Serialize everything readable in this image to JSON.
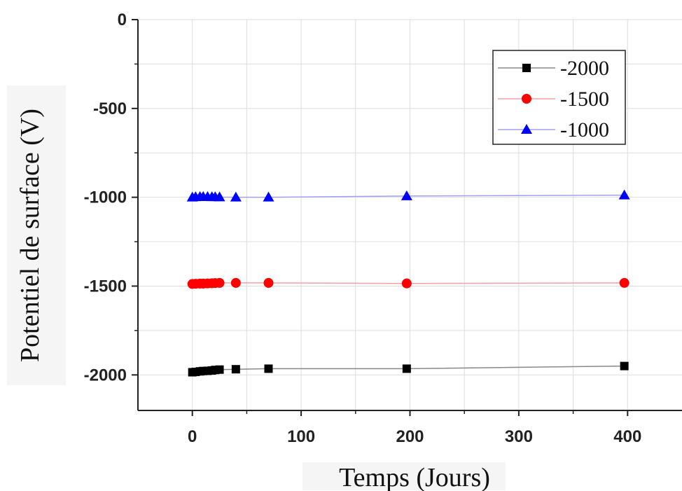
{
  "chart_data": {
    "type": "line",
    "xlabel": "Temps (Jours)",
    "ylabel": "Potentiel de surface (V)",
    "xlim": [
      -50,
      450
    ],
    "ylim": [
      -2200,
      0
    ],
    "xticks": [
      0,
      100,
      200,
      300,
      400
    ],
    "yticks": [
      0,
      -500,
      -1000,
      -1500,
      -2000
    ],
    "grid": true,
    "legend_position": "top-right",
    "series": [
      {
        "name": "-2000",
        "color": "#000000",
        "line_color": "#888888",
        "marker": "square",
        "x": [
          0,
          3,
          7,
          10,
          14,
          18,
          21,
          25,
          40,
          70,
          197,
          397
        ],
        "y": [
          -1985,
          -1983,
          -1980,
          -1978,
          -1977,
          -1975,
          -1972,
          -1970,
          -1968,
          -1965,
          -1965,
          -1950
        ]
      },
      {
        "name": "-1500",
        "color": "#ff0000",
        "line_color": "#f5a0a0",
        "marker": "circle",
        "x": [
          0,
          3,
          7,
          10,
          14,
          18,
          21,
          25,
          40,
          70,
          197,
          397
        ],
        "y": [
          -1488,
          -1487,
          -1486,
          -1486,
          -1485,
          -1484,
          -1483,
          -1482,
          -1482,
          -1482,
          -1485,
          -1482
        ]
      },
      {
        "name": "-1000",
        "color": "#0000ff",
        "line_color": "#a0a0f5",
        "marker": "triangle",
        "x": [
          0,
          3,
          7,
          10,
          14,
          18,
          21,
          25,
          40,
          70,
          197,
          397
        ],
        "y": [
          -1000,
          -998,
          -997,
          -997,
          -997,
          -998,
          -998,
          -999,
          -1000,
          -1000,
          -993,
          -988
        ]
      }
    ]
  }
}
